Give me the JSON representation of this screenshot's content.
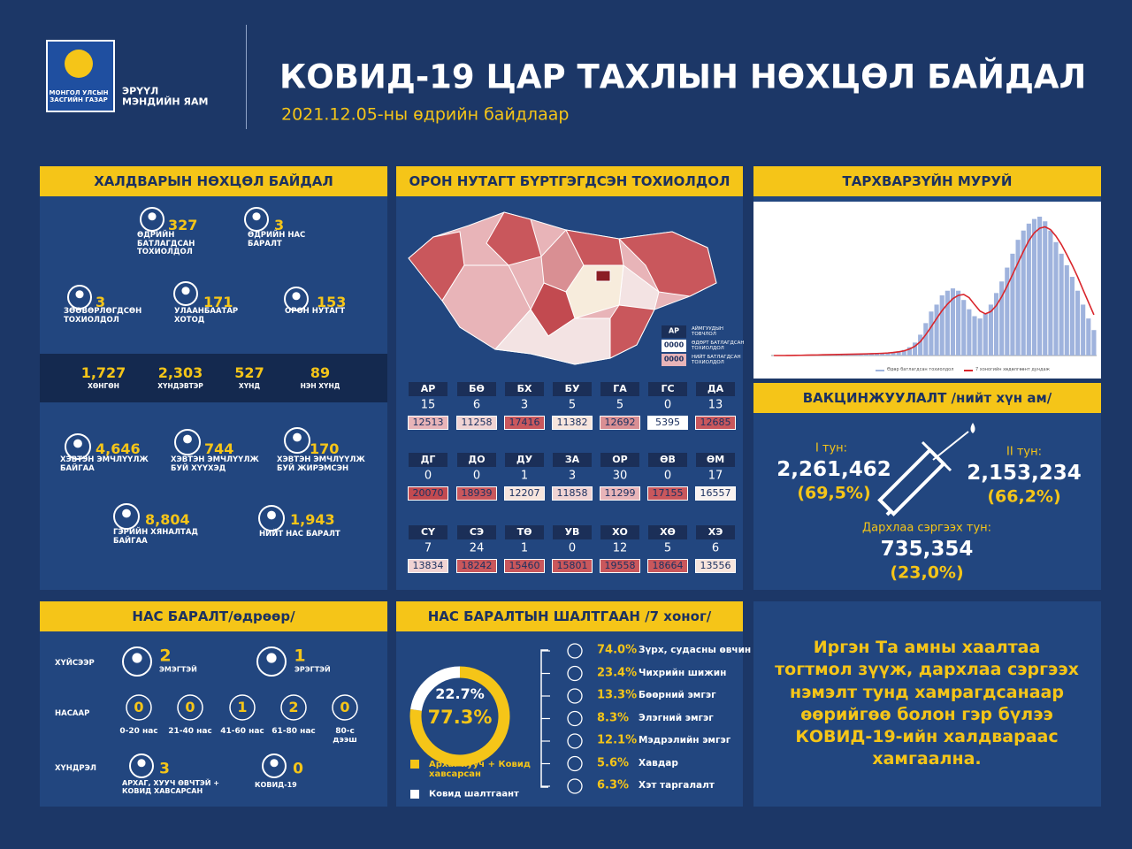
{
  "header": {
    "logo_text": "МОНГОЛ УЛСЫН ЗАСГИЙН ГАЗАР",
    "ministry": "ЭРҮҮЛ МЭНДИЙН ЯАМ",
    "title": "КОВИД-19 ЦАР ТАХЛЫН НӨХЦӨЛ БАЙДАЛ",
    "subtitle": "2021.12.05-ны өдрийн байдлаар"
  },
  "situation": {
    "title": "ХАЛДВАРЫН НӨХЦӨЛ БАЙДАЛ",
    "stats": [
      {
        "value": 327,
        "label": "ӨДРИЙН БАТЛАГДСАН ТОХИОЛДОЛ"
      },
      {
        "value": 3,
        "label": "ӨДРИЙН НАС БАРАЛТ"
      },
      {
        "value": 3,
        "label": "ЗӨӨВӨРЛӨГДСӨН ТОХИОЛДОЛ"
      },
      {
        "value": 171,
        "label": "УЛААНБААТАР ХОТОД"
      },
      {
        "value": 153,
        "label": "ОРОН НУТАГТ"
      }
    ],
    "severity": [
      {
        "value": "1,727",
        "label": "ХӨНГӨН"
      },
      {
        "value": "2,303",
        "label": "ХҮНДЭВТЭР"
      },
      {
        "value": 527,
        "label": "ХҮНД"
      },
      {
        "value": 89,
        "label": "НЭН ХҮНД"
      }
    ],
    "care": [
      {
        "value": "4,646",
        "label": "ХЭВТЭН ЭМЧЛҮҮЛЖ БАЙГАА"
      },
      {
        "value": 744,
        "label": "ХЭВТЭН ЭМЧЛҮҮЛЖ БУЙ ХҮҮХЭД"
      },
      {
        "value": 170,
        "label": "ХЭВТЭН ЭМЧЛҮҮЛЖ БУЙ ЖИРЭМСЭН"
      },
      {
        "value": "8,804",
        "label": "ГЭРИЙН ХЯНАЛТАД БАЙГАА"
      },
      {
        "value": "1,943",
        "label": "НИЙТ НАС БАРАЛТ"
      }
    ]
  },
  "regions": {
    "title": "ОРОН НУТАГТ БҮРТГЭГДСЭН ТОХИОЛДОЛ",
    "legend": [
      {
        "code": "АР",
        "label": "АЙМГУУДЫН ТОВЧЛОЛ"
      },
      {
        "code": "0000",
        "label": "ӨДӨРТ БАТЛАГДСАН ТОХИОЛДОЛ"
      },
      {
        "code": "0000",
        "label": "НИЙТ БАТЛАГДСАН ТОХИОЛДОЛ"
      }
    ],
    "rows": [
      {
        "code": "АР",
        "daily": 15,
        "total": 12513,
        "color": "#e8b4b8"
      },
      {
        "code": "БӨ",
        "daily": 6,
        "total": 11258,
        "color": "#f0d3d3"
      },
      {
        "code": "БХ",
        "daily": 3,
        "total": 17416,
        "color": "#c9575c"
      },
      {
        "code": "БУ",
        "daily": 5,
        "total": 11382,
        "color": "#f7e5dd"
      },
      {
        "code": "ГА",
        "daily": 5,
        "total": 12692,
        "color": "#d98f93"
      },
      {
        "code": "ГС",
        "daily": 0,
        "total": 5395,
        "color": "#ffffff"
      },
      {
        "code": "ДА",
        "daily": 13,
        "total": 12685,
        "color": "#c9575c"
      },
      {
        "code": "ДГ",
        "daily": 0,
        "total": 20070,
        "color": "#c24a50"
      },
      {
        "code": "ДО",
        "daily": 0,
        "total": 18939,
        "color": "#c9575c"
      },
      {
        "code": "ДУ",
        "daily": 1,
        "total": 12207,
        "color": "#f7e5dd"
      },
      {
        "code": "ЗА",
        "daily": 3,
        "total": 11858,
        "color": "#f0d3d3"
      },
      {
        "code": "ОР",
        "daily": 30,
        "total": 11299,
        "color": "#e8b4b8"
      },
      {
        "code": "ӨВ",
        "daily": 0,
        "total": 17155,
        "color": "#c9575c"
      },
      {
        "code": "ӨМ",
        "daily": 17,
        "total": 16557,
        "color": "#f9f2f0"
      },
      {
        "code": "СҮ",
        "daily": 7,
        "total": 13834,
        "color": "#f0d3d3"
      },
      {
        "code": "СЭ",
        "daily": 24,
        "total": 18242,
        "color": "#c9575c"
      },
      {
        "code": "ТӨ",
        "daily": 1,
        "total": 15460,
        "color": "#c9575c"
      },
      {
        "code": "УВ",
        "daily": 0,
        "total": 15801,
        "color": "#c9575c"
      },
      {
        "code": "ХО",
        "daily": 12,
        "total": 19558,
        "color": "#c9575c"
      },
      {
        "code": "ХӨ",
        "daily": 5,
        "total": 18664,
        "color": "#c9575c"
      },
      {
        "code": "ХЭ",
        "daily": 6,
        "total": 13556,
        "color": "#f7e5dd"
      }
    ]
  },
  "epi_curve": {
    "title": "ТАРХВАРЗҮЙН МУРУЙ",
    "series": [
      {
        "name": "Өдөр батлагдсан тохиолдол",
        "color": "#9fb3dd",
        "values": [
          0,
          0,
          0,
          0,
          5,
          5,
          10,
          10,
          15,
          15,
          20,
          20,
          25,
          25,
          30,
          30,
          35,
          40,
          40,
          45,
          50,
          60,
          70,
          90,
          120,
          180,
          280,
          450,
          700,
          950,
          1100,
          1300,
          1400,
          1450,
          1400,
          1200,
          1000,
          850,
          800,
          900,
          1100,
          1350,
          1600,
          1900,
          2200,
          2500,
          2700,
          2850,
          2950,
          3000,
          2900,
          2700,
          2450,
          2200,
          1950,
          1700,
          1400,
          1100,
          800,
          550
        ]
      },
      {
        "name": "7 хоногийн хөдөлгөөнт дундаж",
        "color": "#d9262c",
        "values": [
          0,
          0,
          0,
          1,
          3,
          5,
          8,
          10,
          12,
          15,
          18,
          20,
          22,
          25,
          27,
          30,
          33,
          36,
          40,
          43,
          48,
          55,
          65,
          80,
          100,
          140,
          200,
          300,
          450,
          620,
          800,
          970,
          1110,
          1230,
          1300,
          1320,
          1250,
          1100,
          960,
          900,
          950,
          1080,
          1270,
          1500,
          1750,
          2000,
          2250,
          2480,
          2650,
          2750,
          2780,
          2720,
          2580,
          2400,
          2180,
          1950,
          1700,
          1420,
          1150,
          880
        ]
      }
    ]
  },
  "vaccination": {
    "title": "ВАКЦИНЖУУЛАЛТ /нийт хүн ам/",
    "doses": [
      {
        "label": "I тун:",
        "value": "2,261,462",
        "percent": "(69,5%)"
      },
      {
        "label": "II тун:",
        "value": "2,153,234",
        "percent": "(66,2%)"
      },
      {
        "label": "Дархлаа сэргээх тун:",
        "value": "735,354",
        "percent": "(23,0%)"
      }
    ]
  },
  "deaths": {
    "title": "НАС БАРАЛТ/өдрөөр/",
    "by_sex": {
      "label": "ХҮЙСЭЭР",
      "items": [
        {
          "value": 2,
          "label": "ЭМЭГТЭЙ"
        },
        {
          "value": 1,
          "label": "ЭРЭГТЭЙ"
        }
      ]
    },
    "by_age": {
      "label": "НАСААР",
      "items": [
        {
          "value": 0,
          "label": "0-20 нас"
        },
        {
          "value": 0,
          "label": "21-40 нас"
        },
        {
          "value": 1,
          "label": "41-60 нас"
        },
        {
          "value": 2,
          "label": "61-80 нас"
        },
        {
          "value": 0,
          "label": "80-с дээш"
        }
      ]
    },
    "by_condition": {
      "label": "ХҮНДРЭЛ",
      "items": [
        {
          "value": 3,
          "label": "АРХАГ, ХУУЧ ӨВЧТЭЙ + КОВИД ХАВСАРСАН"
        },
        {
          "value": 0,
          "label": "КОВИД-19"
        }
      ]
    }
  },
  "causes": {
    "title": "НАС БАРАЛТЫН ШАЛТГААН /7 хоног/",
    "donut": [
      {
        "name": "Архаг хууч + Ковид хавсарсан",
        "color": "#f5c518",
        "value": 77.3,
        "value_label": "77.3%"
      },
      {
        "name": "Ковид шалтгаант",
        "color": "#ffffff",
        "value": 22.7,
        "value_label": "22.7%"
      }
    ],
    "conditions": [
      {
        "percent": "74.0%",
        "label": "Зүрх, судасны өвчин"
      },
      {
        "percent": "23.4%",
        "label": "Чихрийн шижин"
      },
      {
        "percent": "13.3%",
        "label": "Бөөрний эмгэг"
      },
      {
        "percent": "8.3%",
        "label": "Элэгний эмгэг"
      },
      {
        "percent": "12.1%",
        "label": "Мэдрэлийн эмгэг"
      },
      {
        "percent": "5.6%",
        "label": "Хавдар"
      },
      {
        "percent": "6.3%",
        "label": "Хэт таргалалт"
      }
    ]
  },
  "message": "Иргэн Та амны хаалтаа тогтмол зүүж, дархлаа сэргээх нэмэлт тунд хамрагдсанаар өөрийгөө болон гэр бүлээ КОВИД-19-ийн халдвараас хамгаална."
}
